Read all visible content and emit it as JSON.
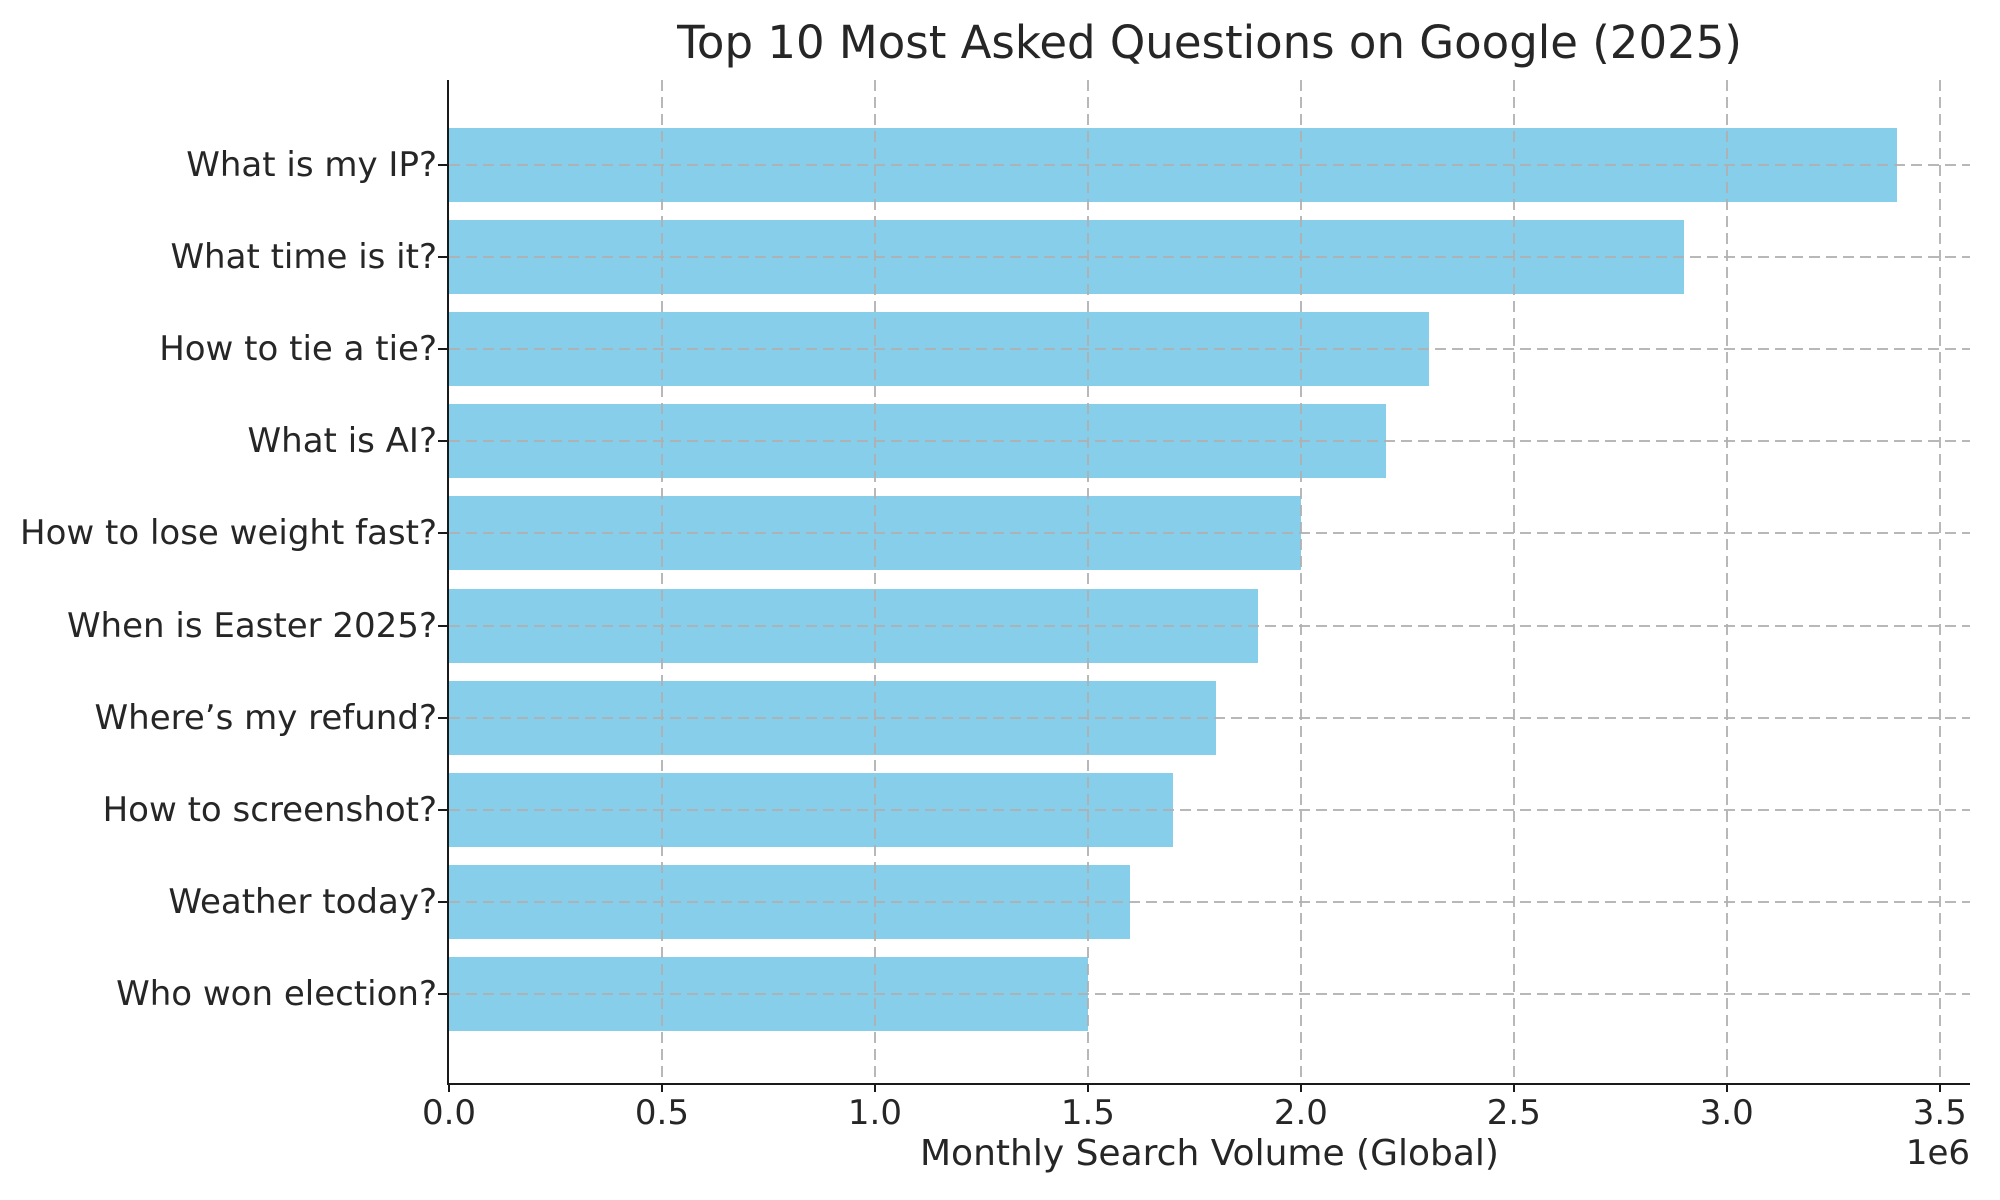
{
  "chart_data": {
    "type": "bar",
    "orientation": "horizontal",
    "title": "Top 10 Most Asked Questions on Google (2025)",
    "xlabel": "Monthly Search Volume (Global)",
    "ylabel": "",
    "categories": [
      "What is my IP?",
      "What time is it?",
      "How to tie a tie?",
      "What is AI?",
      "How to lose weight fast?",
      "When is Easter 2025?",
      "Where’s my refund?",
      "How to screenshot?",
      "Weather today?",
      "Who won election?"
    ],
    "values": [
      3400000,
      2900000,
      2300000,
      2200000,
      2000000,
      1900000,
      1800000,
      1700000,
      1600000,
      1500000
    ],
    "x_tick_values": [
      0,
      500000,
      1000000,
      1500000,
      2000000,
      2500000,
      3000000,
      3500000
    ],
    "x_tick_labels": [
      "0.0",
      "0.5",
      "1.0",
      "1.5",
      "2.0",
      "2.5",
      "3.0",
      "3.5"
    ],
    "offset_label": "1e6",
    "xlim": [
      0,
      3571000
    ],
    "bar_color": "#87ceeb",
    "grid": true,
    "grid_style": "dashed",
    "grid_color": "#b0b0b0",
    "legend_position": "none"
  }
}
